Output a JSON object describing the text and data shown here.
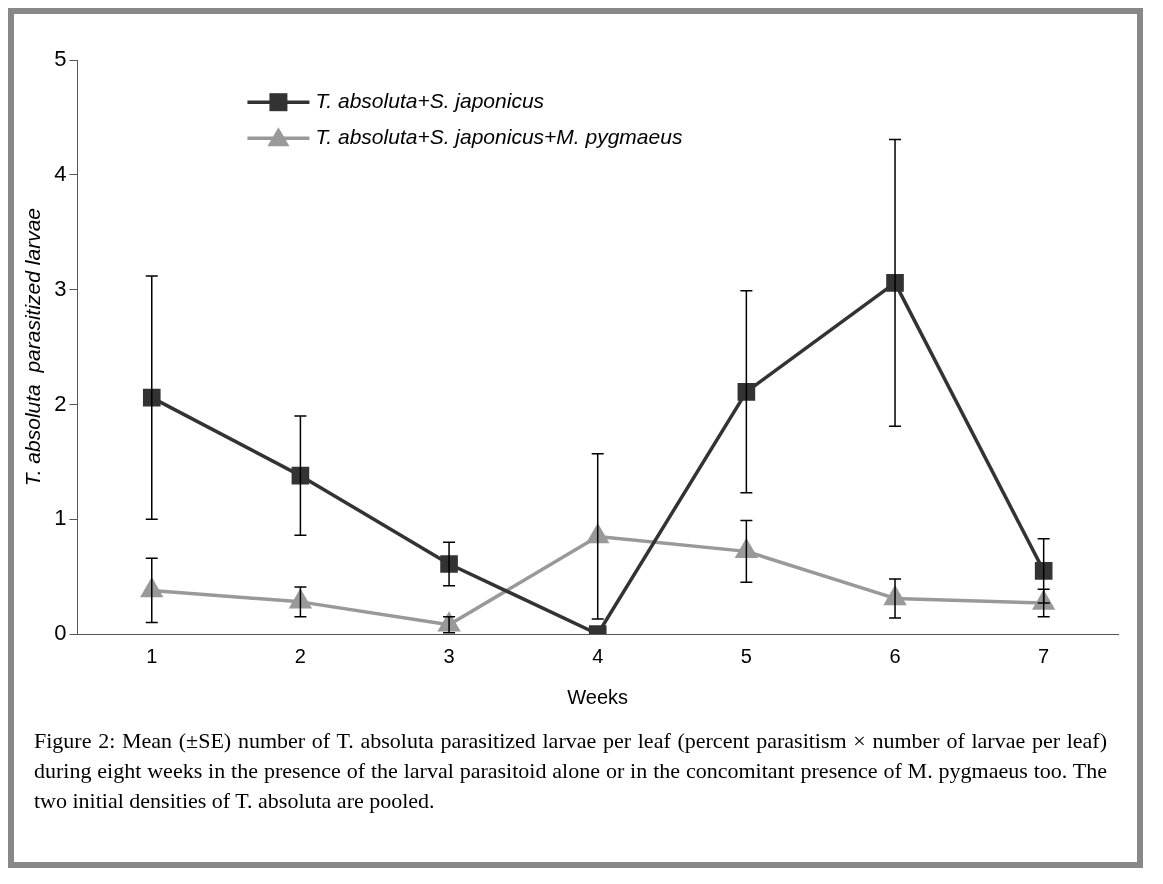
{
  "chart_data": {
    "type": "line",
    "xlabel": "Weeks",
    "ylabel": "T. absoluta  parasitized larvae",
    "categories": [
      "1",
      "2",
      "3",
      "4",
      "5",
      "6",
      "7"
    ],
    "ylim": [
      0,
      5
    ],
    "yticks": [
      0,
      1,
      2,
      3,
      4,
      5
    ],
    "grid": false,
    "legend": "top left",
    "line_style": "solid",
    "series": [
      {
        "name": "T. absoluta+S. japonicus",
        "color": "#333333",
        "marker": "square",
        "values": [
          2.06,
          1.38,
          0.61,
          0.0,
          2.11,
          3.06,
          0.55
        ],
        "errors": [
          1.06,
          0.52,
          0.19,
          null,
          0.88,
          1.25,
          0.28
        ]
      },
      {
        "name": "T. absoluta+S. japonicus+M. pygmaeus",
        "color": "#999999",
        "marker": "triangle",
        "values": [
          0.38,
          0.28,
          0.08,
          0.85,
          0.72,
          0.31,
          0.27
        ],
        "errors": [
          0.28,
          0.13,
          0.07,
          0.72,
          0.27,
          0.17,
          0.12
        ]
      }
    ],
    "annotations": [
      "Figure 2: Mean (±SE) number of T. absoluta parasitized larvae per leaf (percent parasitism × number of larvae per leaf) during eight weeks in the presence of the larval parasitoid alone or in the concomitant presence of M. pygmaeus too. The two initial densities of T. absoluta are pooled."
    ]
  }
}
